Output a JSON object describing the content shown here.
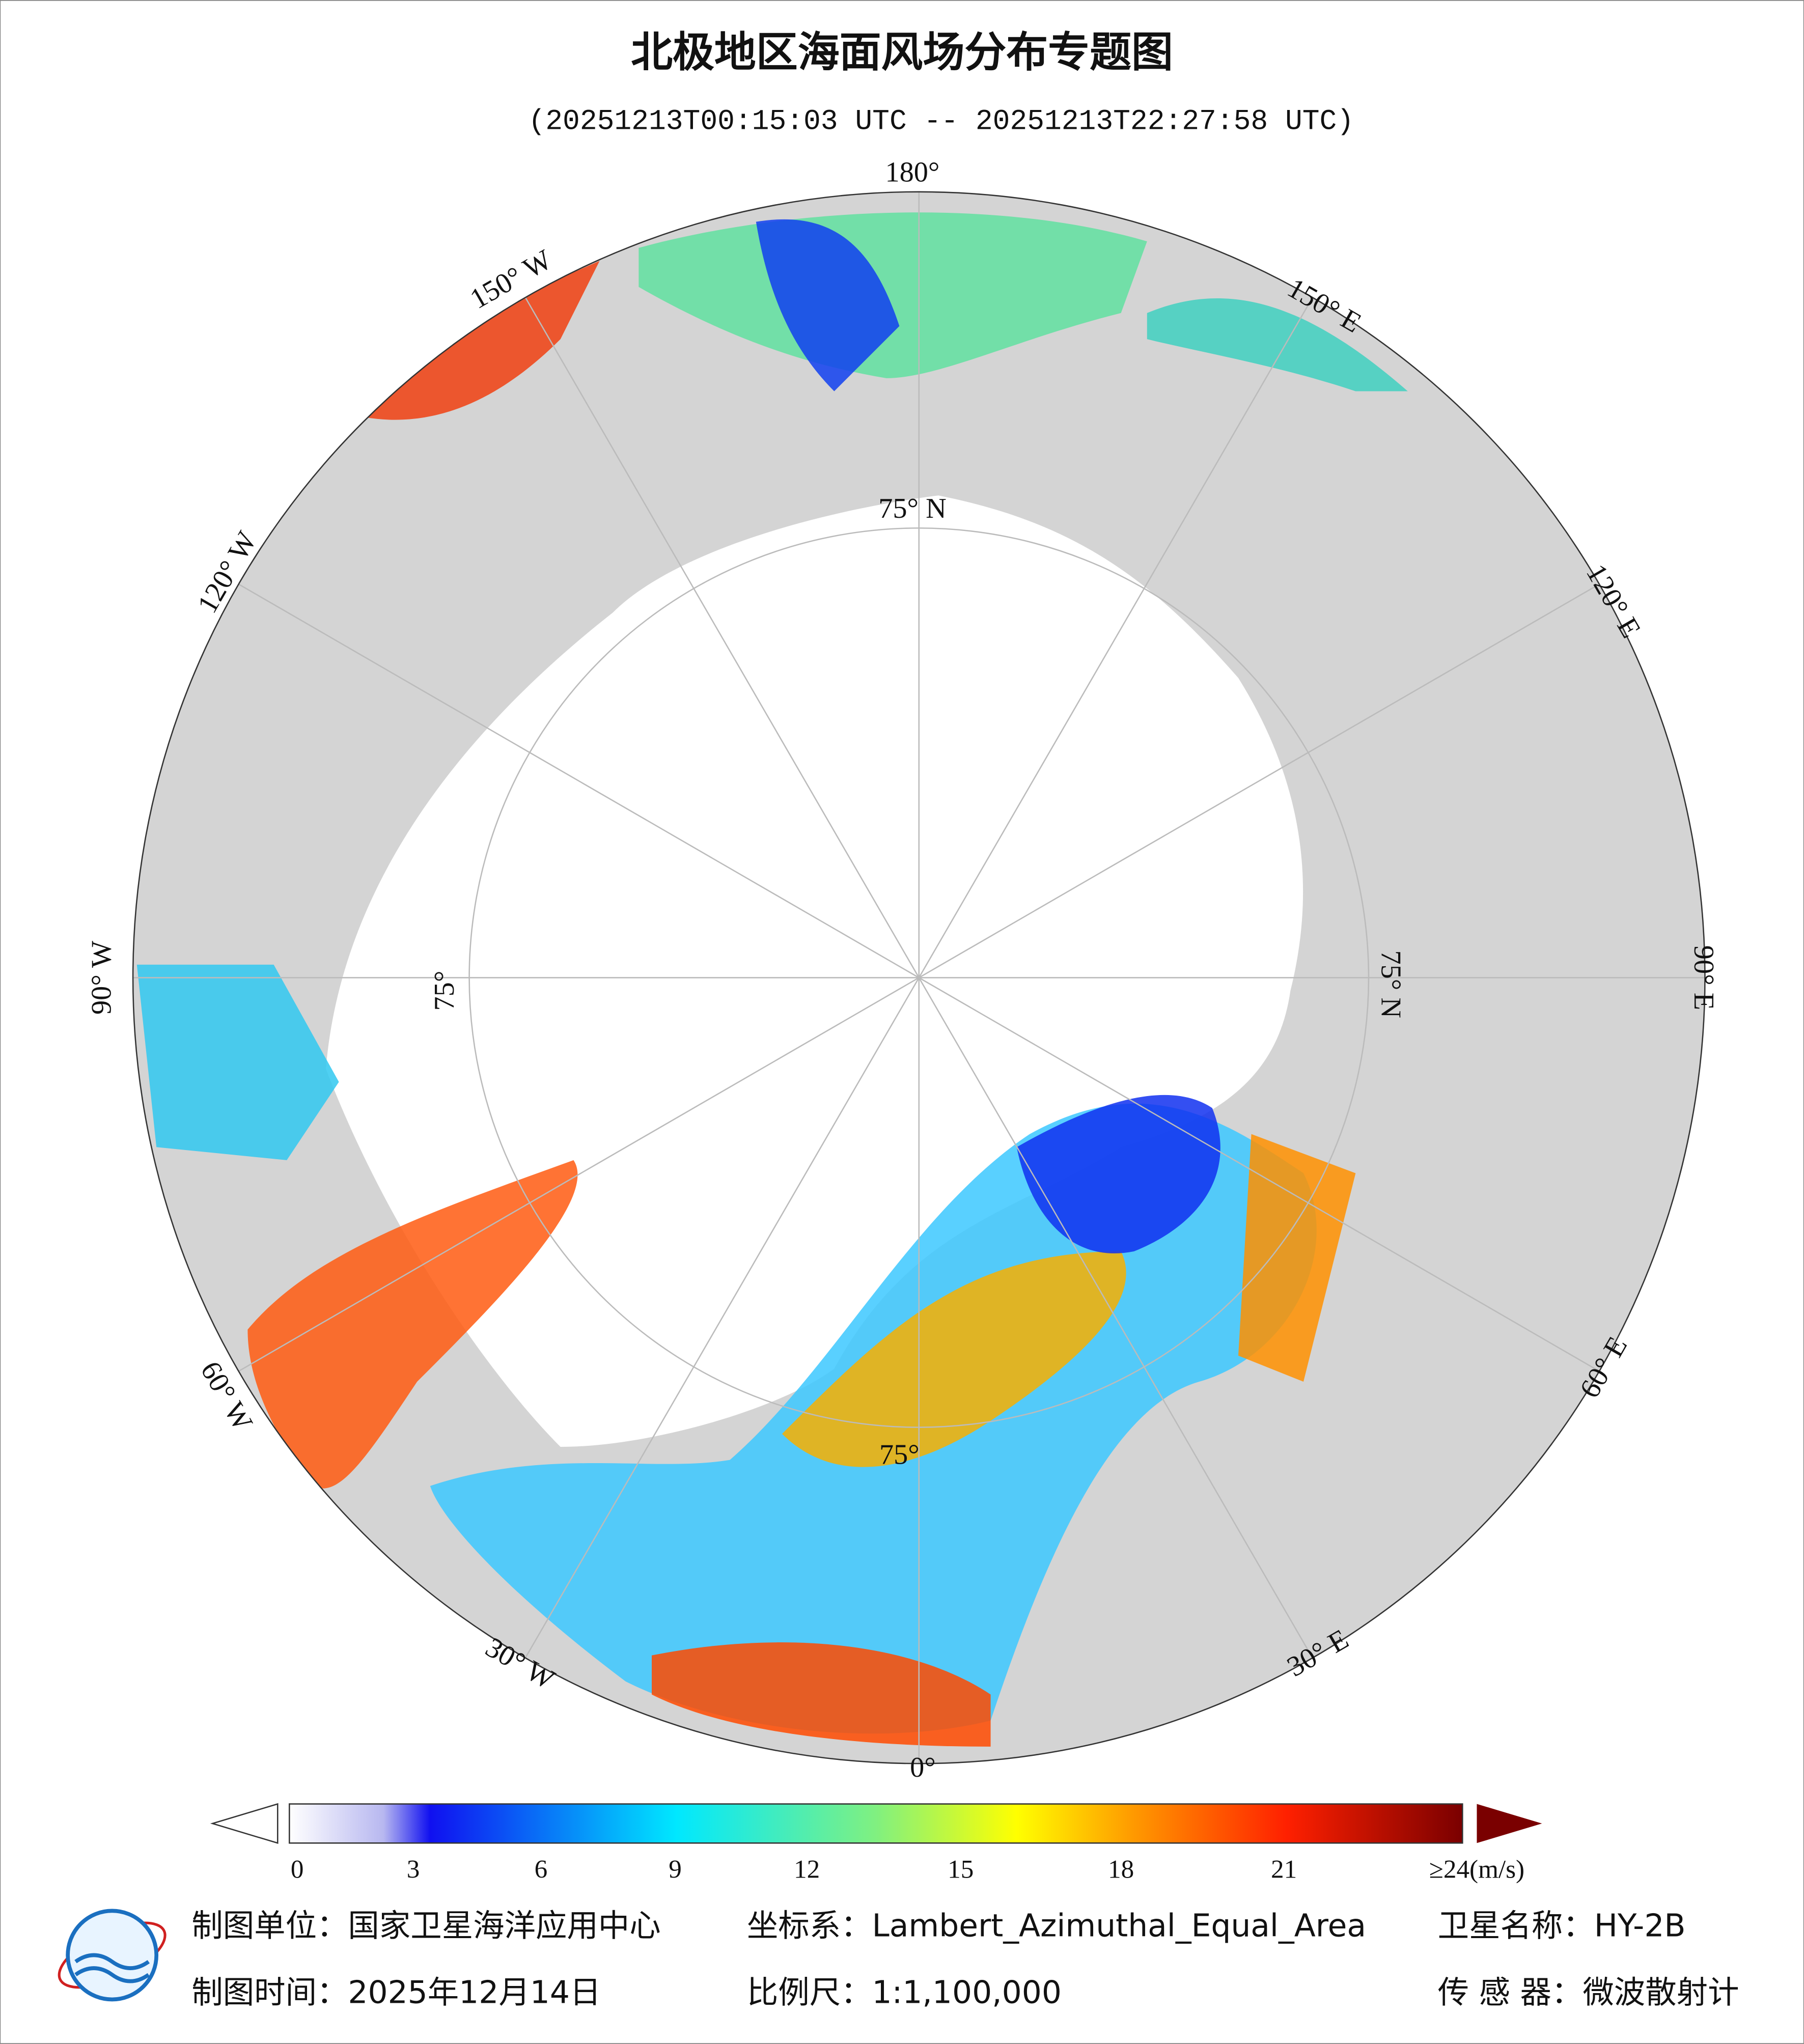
{
  "title": "北极地区海面风场分布专题图",
  "subtitle": "(20251213T00:15:03 UTC -- 20251213T22:27:58 UTC)",
  "map": {
    "labels": [
      "180°",
      "150° W",
      "120° W",
      "90° W",
      "60° W",
      "30° W",
      "0°",
      "30° E",
      "60° E",
      "90° E",
      "120° E",
      "150° E",
      "75° N",
      "75° N",
      "75°",
      "75°"
    ]
  },
  "colorbar": {
    "ticks": [
      0,
      3,
      6,
      9,
      12,
      15,
      18,
      21
    ],
    "max_label": "≥24(m/s)"
  },
  "footer": [
    "制图单位：国家卫星海洋应用中心",
    "坐标系：Lambert_Azimuthal_Equal_Area",
    "卫星名称：HY-2B",
    "制图时间：2025年12月14日",
    "比例尺：1:1,100,000",
    "传 感 器：微波散射计"
  ]
}
